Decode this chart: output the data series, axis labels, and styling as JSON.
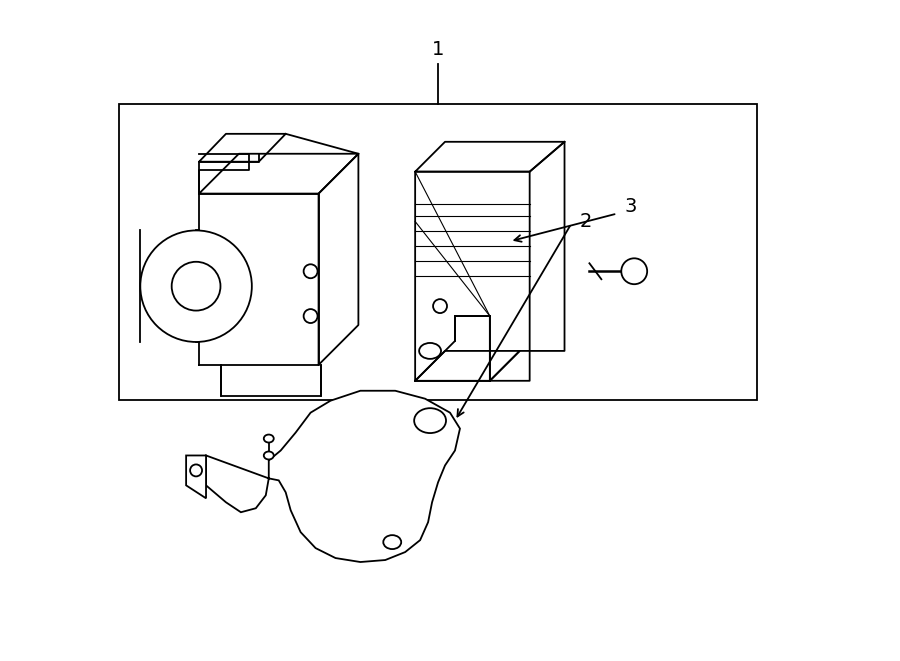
{
  "bg_color": "#ffffff",
  "line_color": "#000000",
  "lw": 1.3,
  "lw_thin": 0.8,
  "fig_width": 9.0,
  "fig_height": 6.61,
  "label1": "1",
  "label2": "2",
  "label3": "3"
}
